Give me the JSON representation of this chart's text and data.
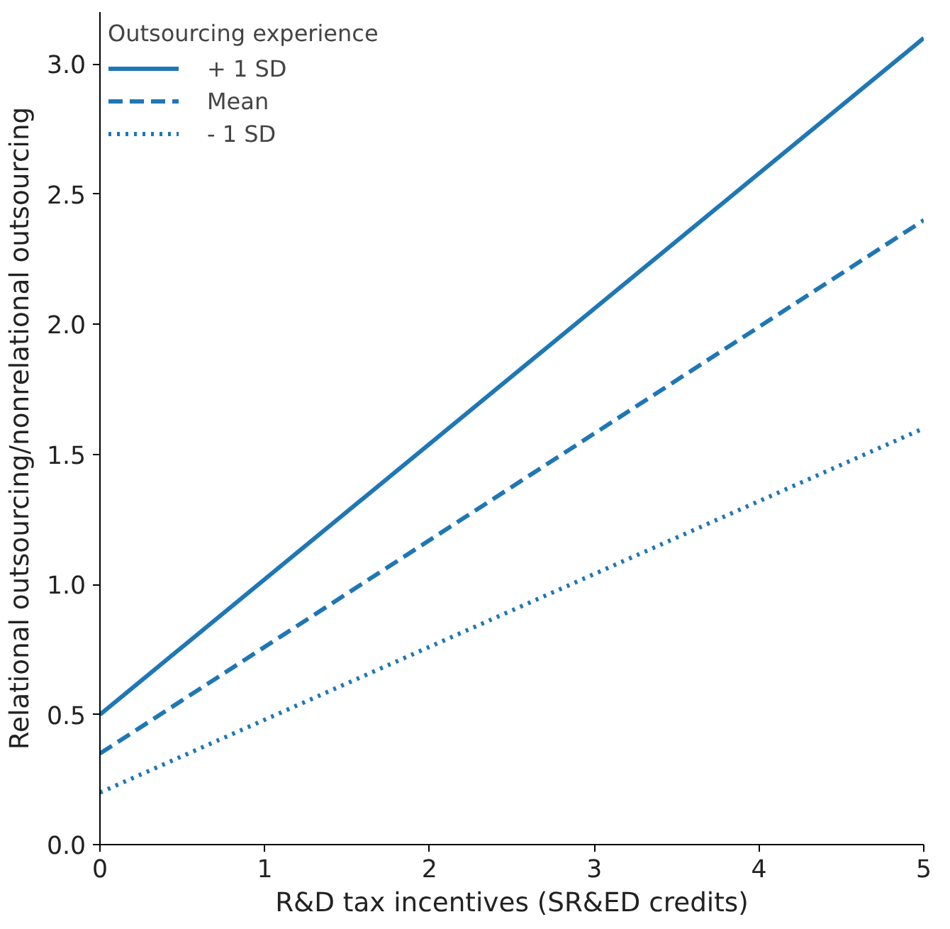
{
  "chart_data": {
    "type": "line",
    "xlabel": "R&D tax incentives (SR&ED credits)",
    "ylabel": "Relational outsourcing/nonrelational outsourcing",
    "legend_title": "Outsourcing experience",
    "x": [
      0,
      5
    ],
    "series": [
      {
        "name": "+ 1 SD",
        "color": "#1f77b4",
        "values": [
          0.5,
          3.1
        ],
        "line_style": "solid"
      },
      {
        "name": "Mean",
        "color": "#1f77b4",
        "values": [
          0.35,
          2.4
        ],
        "line_style": "dashed"
      },
      {
        "name": "- 1 SD",
        "color": "#1f77b4",
        "values": [
          0.2,
          1.6
        ],
        "line_style": "dotted"
      }
    ],
    "xlim": [
      0,
      5
    ],
    "ylim": [
      0,
      3.2
    ],
    "xticks": [
      0,
      1,
      2,
      3,
      4,
      5
    ],
    "yticks": [
      {
        "value": 0,
        "label": "0.0"
      },
      {
        "value": 0.5,
        "label": "0.5"
      },
      {
        "value": 1,
        "label": "1.0"
      },
      {
        "value": 1.5,
        "label": "1.5"
      },
      {
        "value": 2,
        "label": "2.0"
      },
      {
        "value": 2.5,
        "label": "2.5"
      },
      {
        "value": 3,
        "label": "3.0"
      }
    ],
    "grid": false,
    "legend": "top left"
  }
}
